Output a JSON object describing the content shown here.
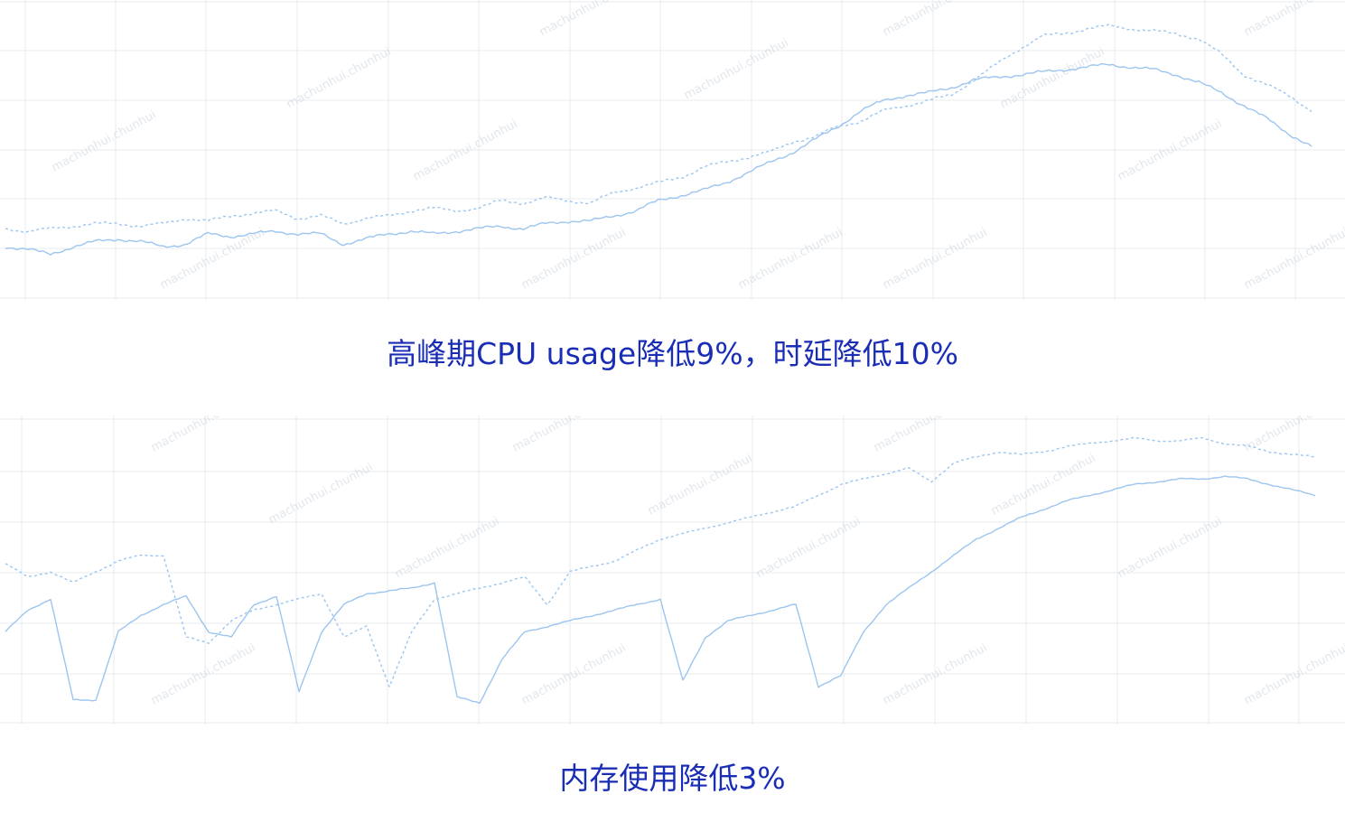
{
  "captions": {
    "cpu": "高峰期CPU usage降低9%，时延降低10%",
    "mem": "内存使用降低3%"
  },
  "watermark_text": "machunhui.chunhui",
  "colors": {
    "grid": "#e7ebef",
    "series": "#9cc5ef",
    "caption": "#1a2db5"
  },
  "chart_data": [
    {
      "type": "line",
      "title": "",
      "x": [
        0,
        1,
        2,
        3,
        4,
        5,
        6,
        7,
        8,
        9,
        10,
        11,
        12,
        13,
        14,
        15,
        16,
        17,
        18,
        19,
        20,
        21,
        22,
        23,
        24,
        25,
        26,
        27,
        28,
        29,
        30,
        31,
        32,
        33,
        34,
        35,
        36,
        37,
        38,
        39,
        40,
        41,
        42,
        43,
        44,
        45,
        46,
        47,
        48,
        49,
        50,
        51,
        52,
        53,
        54,
        55,
        56,
        57,
        58
      ],
      "series": [
        {
          "line_style": "dashed",
          "values": [
            20,
            19,
            20,
            21,
            22,
            22,
            21,
            22,
            24,
            23,
            25,
            26,
            27,
            24,
            25,
            22,
            24,
            25,
            27,
            28,
            27,
            28,
            31,
            30,
            32,
            31,
            30,
            34,
            36,
            38,
            40,
            44,
            46,
            48,
            50,
            54,
            56,
            60,
            62,
            66,
            68,
            70,
            72,
            78,
            84,
            90,
            95,
            96,
            98,
            99,
            98,
            97,
            96,
            94,
            88,
            80,
            76,
            72,
            66
          ]
        },
        {
          "line_style": "solid",
          "values": [
            13,
            12,
            10,
            13,
            15,
            16,
            15,
            13,
            14,
            18,
            17,
            18,
            19,
            18,
            18,
            14,
            16,
            18,
            19,
            18,
            19,
            20,
            21,
            20,
            22,
            23,
            23,
            25,
            27,
            31,
            33,
            35,
            38,
            42,
            46,
            50,
            55,
            60,
            66,
            70,
            72,
            73,
            75,
            78,
            79,
            80,
            81,
            82,
            83,
            84,
            83,
            82,
            80,
            77,
            73,
            68,
            63,
            57,
            52
          ]
        }
      ]
    },
    {
      "type": "line",
      "title": "",
      "x": [
        0,
        1,
        2,
        3,
        4,
        5,
        6,
        7,
        8,
        9,
        10,
        11,
        12,
        13,
        14,
        15,
        16,
        17,
        18,
        19,
        20,
        21,
        22,
        23,
        24,
        25,
        26,
        27,
        28,
        29,
        30,
        31,
        32,
        33,
        34,
        35,
        36,
        37,
        38,
        39,
        40,
        41,
        42,
        43,
        44,
        45,
        46,
        47,
        48,
        49,
        50,
        51,
        52,
        53,
        54,
        55,
        56,
        57,
        58
      ],
      "series": [
        {
          "line_style": "dashed",
          "values": [
            55,
            50,
            52,
            48,
            52,
            56,
            58,
            58,
            28,
            26,
            34,
            38,
            40,
            42,
            44,
            28,
            32,
            10,
            30,
            42,
            44,
            46,
            48,
            50,
            40,
            52,
            54,
            56,
            60,
            64,
            66,
            68,
            70,
            72,
            74,
            76,
            80,
            84,
            86,
            88,
            90,
            85,
            92,
            94,
            96,
            95,
            96,
            98,
            99,
            100,
            101,
            100,
            100,
            101,
            99,
            98,
            96,
            95,
            94
          ]
        },
        {
          "line_style": "solid",
          "values": [
            30,
            38,
            42,
            5,
            5,
            30,
            36,
            40,
            43,
            30,
            28,
            40,
            43,
            8,
            30,
            40,
            44,
            45,
            46,
            48,
            6,
            4,
            20,
            30,
            32,
            34,
            36,
            38,
            40,
            42,
            12,
            28,
            34,
            36,
            38,
            40,
            10,
            14,
            30,
            40,
            46,
            52,
            58,
            64,
            68,
            72,
            75,
            78,
            80,
            82,
            84,
            85,
            86,
            86,
            87,
            86,
            84,
            82,
            80
          ]
        }
      ]
    }
  ]
}
